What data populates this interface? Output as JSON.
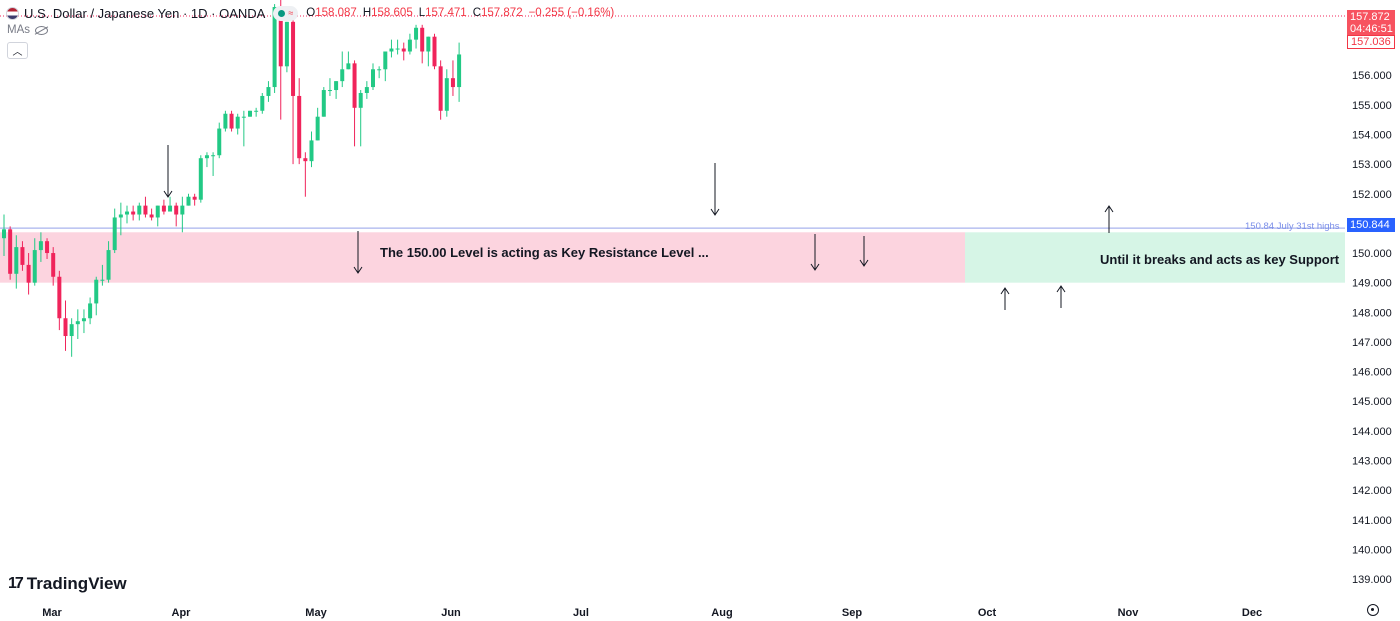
{
  "header": {
    "symbol": "U.S. Dollar / Japanese Yen · 1D · OANDA",
    "open_label": "O",
    "open": "158.087",
    "high_label": "H",
    "high": "158.605",
    "low_label": "L",
    "low": "157.471",
    "close_label": "C",
    "close": "157.872",
    "change": "−0.255 (−0.16%)",
    "indicator_label": "MAs"
  },
  "branding": {
    "name": "TradingView"
  },
  "price_scale": {
    "last_price": "157.872",
    "countdown": "04:46:51",
    "prev_close": "157.036",
    "level_badge": "150.844",
    "ticks": [
      "156.000",
      "155.000",
      "154.000",
      "153.000",
      "152.000",
      "151.000",
      "150.000",
      "149.000",
      "148.000",
      "147.000",
      "146.000",
      "145.000",
      "144.000",
      "143.000",
      "142.000",
      "141.000",
      "140.000",
      "139.000"
    ]
  },
  "annotations": {
    "level_label": "150.84 July 31st highs",
    "resistance_text": "The 150.00 Level is acting as Key Resistance Level ...",
    "support_text": "Until it breaks and acts as key Support"
  },
  "colors": {
    "up": "#22c985",
    "down": "#f0245b",
    "resistance_zone": "#fcd4df",
    "support_zone": "#d6f5e6",
    "level_line": "#aab4ee"
  },
  "chart_data": {
    "type": "candlestick",
    "title": "U.S. Dollar / Japanese Yen · 1D · OANDA",
    "x_ticks": [
      "Mar",
      "Apr",
      "May",
      "Jun",
      "Jul",
      "Aug",
      "Sep",
      "Oct",
      "Nov",
      "Dec"
    ],
    "ylim": [
      138.8,
      158.2
    ],
    "horizontal_line": 150.84,
    "zones": [
      {
        "type": "resistance",
        "from": "Feb 27",
        "to": "Sep 26",
        "low": 149.0,
        "high": 150.7
      },
      {
        "type": "support",
        "from": "Sep 26",
        "to": "Dec 25",
        "low": 149.0,
        "high": 150.7
      }
    ],
    "arrows": [
      {
        "date": "Mar 27",
        "dir": "down"
      },
      {
        "date": "May 10",
        "dir": "down"
      },
      {
        "date": "Jul 31",
        "dir": "down"
      },
      {
        "date": "Aug 22",
        "dir": "down"
      },
      {
        "date": "Sep 3",
        "dir": "down"
      },
      {
        "date": "Oct 7",
        "dir": "up"
      },
      {
        "date": "Oct 18",
        "dir": "up"
      },
      {
        "date": "Oct 30",
        "dir": "up"
      }
    ],
    "candles": [
      {
        "date": "Feb 23",
        "o": 150.5,
        "h": 151.3,
        "l": 149.9,
        "c": 150.8
      },
      {
        "date": "Feb 26",
        "o": 150.8,
        "h": 150.9,
        "l": 149.1,
        "c": 149.3
      },
      {
        "date": "Feb 27",
        "o": 149.3,
        "h": 150.6,
        "l": 148.8,
        "c": 150.2
      },
      {
        "date": "Feb 28",
        "o": 150.2,
        "h": 150.4,
        "l": 149.4,
        "c": 149.6
      },
      {
        "date": "Feb 29",
        "o": 149.6,
        "h": 150.0,
        "l": 148.6,
        "c": 149.0
      },
      {
        "date": "Mar 1",
        "o": 149.0,
        "h": 150.5,
        "l": 148.9,
        "c": 150.1
      },
      {
        "date": "Mar 4",
        "o": 150.1,
        "h": 150.7,
        "l": 149.7,
        "c": 150.4
      },
      {
        "date": "Mar 5",
        "o": 150.4,
        "h": 150.5,
        "l": 149.8,
        "c": 150.0
      },
      {
        "date": "Mar 6",
        "o": 150.0,
        "h": 150.2,
        "l": 148.9,
        "c": 149.2
      },
      {
        "date": "Mar 7",
        "o": 149.2,
        "h": 149.4,
        "l": 147.4,
        "c": 147.8
      },
      {
        "date": "Mar 8",
        "o": 147.8,
        "h": 148.4,
        "l": 146.7,
        "c": 147.2
      },
      {
        "date": "Mar 11",
        "o": 147.2,
        "h": 147.8,
        "l": 146.5,
        "c": 147.6
      },
      {
        "date": "Mar 12",
        "o": 147.6,
        "h": 148.1,
        "l": 147.1,
        "c": 147.7
      },
      {
        "date": "Mar 13",
        "o": 147.7,
        "h": 148.1,
        "l": 147.3,
        "c": 147.8
      },
      {
        "date": "Mar 14",
        "o": 147.8,
        "h": 148.5,
        "l": 147.6,
        "c": 148.3
      },
      {
        "date": "Mar 15",
        "o": 148.3,
        "h": 149.2,
        "l": 147.9,
        "c": 149.1
      },
      {
        "date": "Mar 18",
        "o": 149.1,
        "h": 149.6,
        "l": 148.9,
        "c": 149.1
      },
      {
        "date": "Mar 19",
        "o": 149.1,
        "h": 150.4,
        "l": 149.0,
        "c": 150.1
      },
      {
        "date": "Mar 20",
        "o": 150.1,
        "h": 151.5,
        "l": 150.0,
        "c": 151.2
      },
      {
        "date": "Mar 21",
        "o": 151.2,
        "h": 151.7,
        "l": 150.6,
        "c": 151.3
      },
      {
        "date": "Mar 22",
        "o": 151.3,
        "h": 151.6,
        "l": 151.0,
        "c": 151.4
      },
      {
        "date": "Mar 25",
        "o": 151.4,
        "h": 151.6,
        "l": 151.1,
        "c": 151.3
      },
      {
        "date": "Mar 26",
        "o": 151.3,
        "h": 151.7,
        "l": 151.1,
        "c": 151.6
      },
      {
        "date": "Mar 27",
        "o": 151.6,
        "h": 151.9,
        "l": 151.2,
        "c": 151.3
      },
      {
        "date": "Mar 28",
        "o": 151.3,
        "h": 151.5,
        "l": 151.1,
        "c": 151.2
      },
      {
        "date": "Apr 1",
        "o": 151.2,
        "h": 151.6,
        "l": 150.9,
        "c": 151.6
      },
      {
        "date": "Apr 2",
        "o": 151.6,
        "h": 151.8,
        "l": 151.3,
        "c": 151.4
      },
      {
        "date": "Apr 3",
        "o": 151.4,
        "h": 151.9,
        "l": 151.5,
        "c": 151.6
      },
      {
        "date": "Apr 4",
        "o": 151.6,
        "h": 151.7,
        "l": 150.9,
        "c": 151.3
      },
      {
        "date": "Apr 5",
        "o": 151.3,
        "h": 151.9,
        "l": 150.7,
        "c": 151.6
      },
      {
        "date": "Apr 8",
        "o": 151.6,
        "h": 152.0,
        "l": 151.6,
        "c": 151.9
      },
      {
        "date": "Apr 9",
        "o": 151.9,
        "h": 152.0,
        "l": 151.6,
        "c": 151.8
      },
      {
        "date": "Apr 10",
        "o": 151.8,
        "h": 153.3,
        "l": 151.7,
        "c": 153.2
      },
      {
        "date": "Apr 11",
        "o": 153.2,
        "h": 153.4,
        "l": 152.9,
        "c": 153.3
      },
      {
        "date": "Apr 12",
        "o": 153.3,
        "h": 153.4,
        "l": 152.6,
        "c": 153.3
      },
      {
        "date": "Apr 15",
        "o": 153.3,
        "h": 154.4,
        "l": 153.2,
        "c": 154.2
      },
      {
        "date": "Apr 16",
        "o": 154.2,
        "h": 154.8,
        "l": 154.1,
        "c": 154.7
      },
      {
        "date": "Apr 17",
        "o": 154.7,
        "h": 154.8,
        "l": 154.1,
        "c": 154.2
      },
      {
        "date": "Apr 18",
        "o": 154.2,
        "h": 154.7,
        "l": 154.0,
        "c": 154.6
      },
      {
        "date": "Apr 19",
        "o": 154.6,
        "h": 154.8,
        "l": 153.6,
        "c": 154.6
      },
      {
        "date": "Apr 22",
        "o": 154.6,
        "h": 154.8,
        "l": 154.6,
        "c": 154.8
      },
      {
        "date": "Apr 23",
        "o": 154.8,
        "h": 154.9,
        "l": 154.6,
        "c": 154.8
      },
      {
        "date": "Apr 24",
        "o": 154.8,
        "h": 155.4,
        "l": 154.7,
        "c": 155.3
      },
      {
        "date": "Apr 25",
        "o": 155.3,
        "h": 155.8,
        "l": 155.1,
        "c": 155.6
      },
      {
        "date": "Apr 26",
        "o": 155.6,
        "h": 158.4,
        "l": 155.4,
        "c": 158.3
      },
      {
        "date": "Apr 29",
        "o": 158.3,
        "h": 160.2,
        "l": 154.5,
        "c": 156.3
      },
      {
        "date": "Apr 30",
        "o": 156.3,
        "h": 157.8,
        "l": 156.1,
        "c": 157.8
      },
      {
        "date": "May 1",
        "o": 157.8,
        "h": 157.9,
        "l": 153.0,
        "c": 155.3
      },
      {
        "date": "May 2",
        "o": 155.3,
        "h": 155.9,
        "l": 153.0,
        "c": 153.2
      },
      {
        "date": "May 3",
        "o": 153.2,
        "h": 153.4,
        "l": 151.9,
        "c": 153.1
      },
      {
        "date": "May 6",
        "o": 153.1,
        "h": 154.1,
        "l": 152.9,
        "c": 153.8
      },
      {
        "date": "May 7",
        "o": 153.8,
        "h": 154.9,
        "l": 153.8,
        "c": 154.6
      },
      {
        "date": "May 8",
        "o": 154.6,
        "h": 155.6,
        "l": 154.6,
        "c": 155.5
      },
      {
        "date": "May 9",
        "o": 155.5,
        "h": 155.9,
        "l": 155.3,
        "c": 155.5
      },
      {
        "date": "May 10",
        "o": 155.5,
        "h": 155.8,
        "l": 155.2,
        "c": 155.8
      },
      {
        "date": "May 13",
        "o": 155.8,
        "h": 156.8,
        "l": 155.6,
        "c": 156.2
      },
      {
        "date": "May 14",
        "o": 156.2,
        "h": 156.8,
        "l": 156.2,
        "c": 156.4
      },
      {
        "date": "May 15",
        "o": 156.4,
        "h": 156.5,
        "l": 153.6,
        "c": 154.9
      },
      {
        "date": "May 16",
        "o": 154.9,
        "h": 155.5,
        "l": 153.6,
        "c": 155.4
      },
      {
        "date": "May 17",
        "o": 155.4,
        "h": 155.8,
        "l": 155.2,
        "c": 155.6
      },
      {
        "date": "May 20",
        "o": 155.6,
        "h": 156.4,
        "l": 155.5,
        "c": 156.2
      },
      {
        "date": "May 21",
        "o": 156.2,
        "h": 156.3,
        "l": 155.9,
        "c": 156.2
      },
      {
        "date": "May 22",
        "o": 156.2,
        "h": 156.8,
        "l": 155.8,
        "c": 156.8
      },
      {
        "date": "May 23",
        "o": 156.8,
        "h": 157.2,
        "l": 156.6,
        "c": 156.9
      },
      {
        "date": "May 24",
        "o": 156.9,
        "h": 157.2,
        "l": 156.7,
        "c": 156.9
      },
      {
        "date": "May 27",
        "o": 156.9,
        "h": 157.1,
        "l": 156.5,
        "c": 156.8
      },
      {
        "date": "May 28",
        "o": 156.8,
        "h": 157.4,
        "l": 156.7,
        "c": 157.2
      },
      {
        "date": "May 29",
        "o": 157.2,
        "h": 157.7,
        "l": 156.9,
        "c": 157.6
      },
      {
        "date": "May 30",
        "o": 157.6,
        "h": 157.7,
        "l": 156.4,
        "c": 156.8
      },
      {
        "date": "May 31",
        "o": 156.8,
        "h": 157.3,
        "l": 156.3,
        "c": 157.3
      },
      {
        "date": "Jun 3",
        "o": 157.3,
        "h": 157.4,
        "l": 156.2,
        "c": 156.3
      },
      {
        "date": "Jun 4",
        "o": 156.3,
        "h": 156.5,
        "l": 154.5,
        "c": 154.8
      },
      {
        "date": "Jun 5",
        "o": 154.8,
        "h": 156.2,
        "l": 154.6,
        "c": 155.9
      },
      {
        "date": "Jun 6",
        "o": 155.9,
        "h": 156.5,
        "l": 155.3,
        "c": 155.6
      },
      {
        "date": "Jun 7",
        "o": 155.6,
        "h": 157.1,
        "l": 155.1,
        "c": 156.7
      }
    ]
  }
}
